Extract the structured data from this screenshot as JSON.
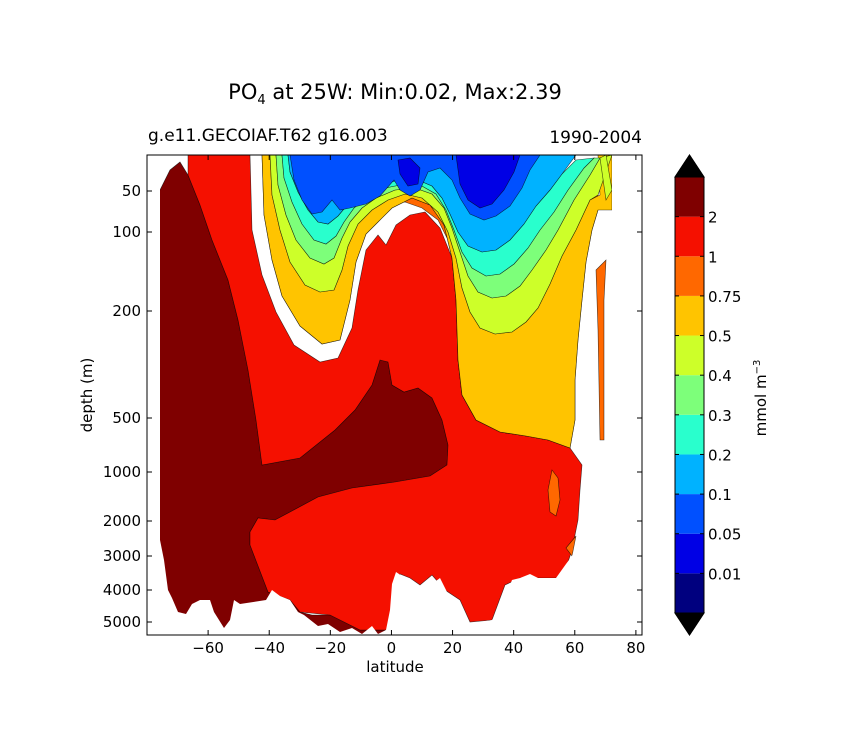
{
  "chart_data": {
    "type": "contour",
    "title_main": "PO",
    "title_sub4": "4",
    "title_rest": " at 25W: Min:0.02, Max:2.39",
    "left_subtitle": "g.e11.GECOIAF.T62 g16.003",
    "right_subtitle": "1990-2004",
    "xlabel": "latitude",
    "ylabel": "depth (m)",
    "xlim": [
      -80,
      82
    ],
    "x_ticks": [
      -60,
      -40,
      -20,
      0,
      20,
      40,
      60,
      80
    ],
    "x_tick_labels": [
      "−60",
      "−40",
      "−20",
      "0",
      "20",
      "40",
      "60",
      "80"
    ],
    "y_ticks": [
      50,
      100,
      200,
      500,
      1000,
      2000,
      3000,
      4000,
      5000
    ],
    "y_tick_labels": [
      "50",
      "100",
      "200",
      "500",
      "1000",
      "2000",
      "3000",
      "4000",
      "5000"
    ],
    "colorbar": {
      "levels": [
        0.01,
        0.05,
        0.1,
        0.2,
        0.3,
        0.4,
        0.5,
        0.75,
        1,
        2
      ],
      "level_labels": [
        "0.01",
        "0.05",
        "0.1",
        "0.2",
        "0.3",
        "0.4",
        "0.5",
        "0.75",
        "1",
        "2"
      ],
      "colors": [
        "#00007f",
        "#0000e5",
        "#0050ff",
        "#00b2ff",
        "#29ffcd",
        "#7dff7a",
        "#cdff29",
        "#ffc400",
        "#ff6800",
        "#f51000",
        "#7f0000"
      ],
      "label": "mmol m",
      "label_sup": "−3",
      "extend": "both"
    }
  }
}
